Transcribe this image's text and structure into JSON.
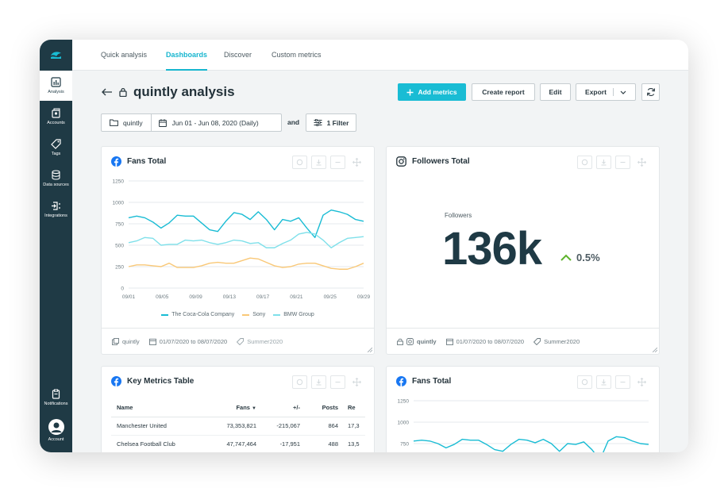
{
  "sidebar": {
    "items": [
      {
        "label": "Analysis",
        "icon": "bar-chart-icon"
      },
      {
        "label": "Accounts",
        "icon": "accounts-icon"
      },
      {
        "label": "Tags",
        "icon": "tag-icon"
      },
      {
        "label": "Data sources",
        "icon": "database-icon"
      },
      {
        "label": "Integrations",
        "icon": "integrations-icon"
      }
    ],
    "bottom": [
      {
        "label": "Notifications",
        "icon": "clipboard-icon"
      },
      {
        "label": "Account",
        "icon": "avatar-icon"
      }
    ]
  },
  "tabs": [
    {
      "label": "Quick analysis"
    },
    {
      "label": "Dashboards"
    },
    {
      "label": "Discover"
    },
    {
      "label": "Custom metrics"
    }
  ],
  "header": {
    "title": "quintly analysis",
    "add_metrics": "Add metrics",
    "create_report": "Create report",
    "edit": "Edit",
    "export": "Export"
  },
  "filters": {
    "group": "quintly",
    "date_range": "Jun 01 - Jun 08, 2020 (Daily)",
    "and": "and",
    "filter": "1 Filter"
  },
  "cards": {
    "fans_total": {
      "title": "Fans Total",
      "foot_group": "quintly",
      "foot_date": "01/07/2020 to 08/07/2020",
      "foot_tag": "Summer2020"
    },
    "followers_total": {
      "title": "Followers Total",
      "label": "Followers",
      "value": "136k",
      "change": "0.5%",
      "foot_group": "quintly",
      "foot_date": "01/07/2020 to 08/07/2020",
      "foot_tag": "Summer2020"
    },
    "key_metrics": {
      "title": "Key Metrics Table",
      "columns": [
        "Name",
        "Fans",
        "+/-",
        "Posts",
        "Re"
      ],
      "rows": [
        {
          "name": "Manchester United",
          "fans": "73,353,821",
          "change": "-215,067",
          "posts": "864",
          "re": "17,3"
        },
        {
          "name": "Chelsea Football Club",
          "fans": "47,747,464",
          "change": "-17,951",
          "posts": "488",
          "re": "13,5"
        }
      ]
    },
    "fans_total_2": {
      "title": "Fans Total"
    }
  },
  "chart_data": [
    {
      "type": "line",
      "y_ticks": [
        "1250",
        "1000",
        "750",
        "500",
        "250",
        "0"
      ],
      "ylim": [
        0,
        1250
      ],
      "x_ticks": [
        "09/01",
        "09/05",
        "09/09",
        "09/13",
        "09/17",
        "09/21",
        "09/25",
        "09/29"
      ],
      "x": [
        1,
        2,
        3,
        4,
        5,
        6,
        7,
        8,
        9,
        10,
        11,
        12,
        13,
        14,
        15,
        16,
        17,
        18,
        19,
        20,
        21,
        22,
        23,
        24,
        25,
        26,
        27,
        28,
        29,
        30
      ],
      "grid": true,
      "legend": "bottom",
      "series": [
        {
          "name": "The Coca-Cola Company",
          "color": "#19bcd4",
          "values": [
            820,
            840,
            820,
            770,
            700,
            760,
            850,
            840,
            840,
            760,
            680,
            660,
            780,
            880,
            860,
            800,
            890,
            800,
            680,
            800,
            780,
            820,
            700,
            590,
            850,
            910,
            890,
            860,
            800,
            780
          ]
        },
        {
          "name": "Sony",
          "color": "#f9c877",
          "values": [
            250,
            270,
            270,
            260,
            250,
            290,
            240,
            240,
            240,
            260,
            290,
            300,
            290,
            290,
            320,
            350,
            340,
            300,
            260,
            240,
            250,
            280,
            290,
            290,
            260,
            230,
            220,
            220,
            250,
            290
          ]
        },
        {
          "name": "BMW Group",
          "color": "#7fe0ea",
          "values": [
            530,
            550,
            590,
            580,
            500,
            510,
            510,
            560,
            550,
            560,
            530,
            510,
            530,
            560,
            550,
            520,
            530,
            470,
            470,
            520,
            560,
            630,
            650,
            630,
            560,
            470,
            530,
            580,
            590,
            600
          ]
        }
      ]
    },
    {
      "type": "line",
      "y_ticks": [
        "1250",
        "1000",
        "750"
      ],
      "ylim": [
        0,
        1250
      ],
      "x": [
        1,
        2,
        3,
        4,
        5,
        6,
        7,
        8,
        9,
        10,
        11,
        12,
        13,
        14,
        15,
        16,
        17,
        18,
        19,
        20,
        21,
        22,
        23,
        24,
        25,
        26,
        27,
        28,
        29,
        30
      ],
      "grid": true,
      "series": [
        {
          "color": "#19bcd4",
          "values": [
            780,
            790,
            780,
            750,
            700,
            740,
            800,
            790,
            790,
            740,
            680,
            660,
            740,
            800,
            790,
            760,
            800,
            750,
            660,
            750,
            740,
            770,
            680,
            560,
            780,
            830,
            820,
            780,
            750,
            740
          ]
        },
        {
          "color": "#7fe0ea",
          "values": [
            560,
            570,
            590,
            580,
            540,
            540,
            560,
            580,
            570,
            580,
            560,
            540,
            560,
            580,
            570,
            550,
            560,
            520,
            520,
            550,
            570,
            600,
            610,
            600,
            560,
            520,
            550,
            580,
            590,
            600
          ]
        }
      ]
    }
  ]
}
